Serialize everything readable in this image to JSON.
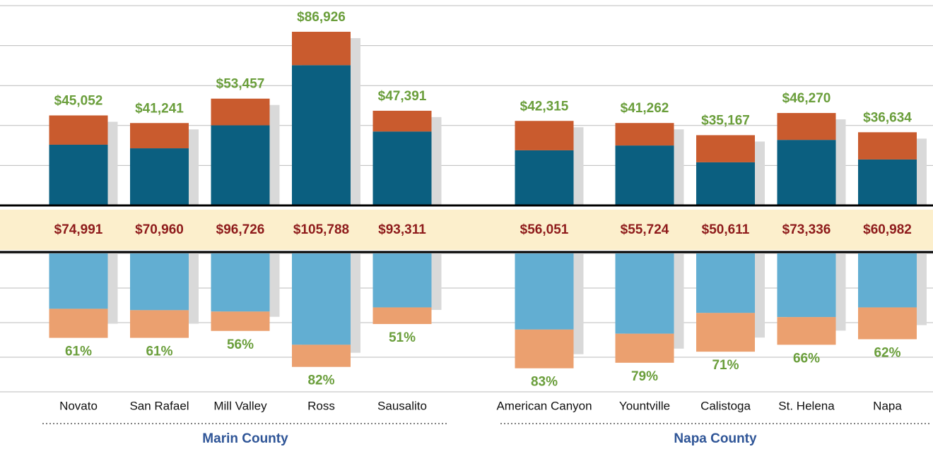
{
  "groups": [
    {
      "name": "Marin County",
      "categories": [
        "Novato",
        "San Rafael",
        "Mill Valley",
        "Ross",
        "Sausalito"
      ]
    },
    {
      "name": "Napa County",
      "categories": [
        "American Canyon",
        "Yountville",
        "Calistoga",
        "St. Helena",
        "Napa"
      ]
    }
  ],
  "chart_data": [
    {
      "type": "bar",
      "stacked": true,
      "grid": true,
      "ylim": [
        0,
        100000
      ],
      "yticks": [
        0,
        20000,
        40000,
        60000,
        80000,
        100000
      ],
      "series": [
        {
          "color": "#0b5f80",
          "values": [
            30400,
            28600,
            40100,
            70200,
            37000,
            27600,
            30000,
            21600,
            32800,
            23000
          ]
        },
        {
          "color": "#c95b2e",
          "values": [
            14652,
            12641,
            13357,
            16726,
            10391,
            14715,
            11262,
            13567,
            13470,
            13634
          ]
        }
      ],
      "totals": [
        45052,
        41241,
        53457,
        86926,
        47391,
        42315,
        41262,
        35167,
        46270,
        36634
      ],
      "value_labels": [
        "$45,052",
        "$41,241",
        "$53,457",
        "$86,926",
        "$47,391",
        "$42,315",
        "$41,262",
        "$35,167",
        "$46,270",
        "$36,634"
      ],
      "label_color": "#6a9e3b"
    },
    {
      "type": "label-band",
      "color": "#fcefcc",
      "text_color": "#8e1b1b",
      "values": [
        74991,
        70960,
        96726,
        105788,
        93311,
        56051,
        55724,
        50611,
        73336,
        60982
      ],
      "value_labels": [
        "$74,991",
        "$70,960",
        "$96,726",
        "$105,788",
        "$93,311",
        "$56,051",
        "$55,724",
        "$50,611",
        "$73,336",
        "$60,982"
      ]
    },
    {
      "type": "bar",
      "stacked": true,
      "inverted": true,
      "grid": true,
      "ylim": [
        0,
        100
      ],
      "yticks": [
        0,
        25,
        50,
        75,
        100
      ],
      "series": [
        {
          "color": "#62aed2",
          "values": [
            40,
            41,
            42,
            66,
            39,
            55,
            58,
            43,
            46,
            39
          ]
        },
        {
          "color": "#eba06f",
          "values": [
            21,
            20,
            14,
            16,
            12,
            28,
            21,
            28,
            20,
            23
          ]
        }
      ],
      "totals": [
        61,
        61,
        56,
        82,
        51,
        83,
        79,
        71,
        66,
        62
      ],
      "value_labels": [
        "61%",
        "61%",
        "56%",
        "82%",
        "51%",
        "83%",
        "79%",
        "71%",
        "66%",
        "62%"
      ],
      "label_color": "#6a9e3b"
    }
  ]
}
